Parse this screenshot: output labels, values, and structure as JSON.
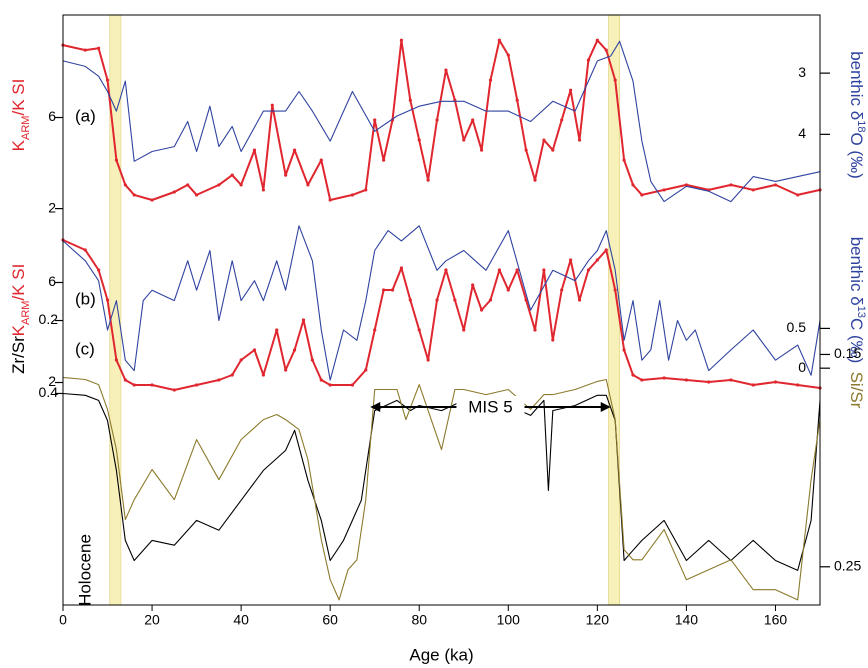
{
  "chart_data": [
    {
      "type": "line",
      "label": "(a)",
      "ylabel": [
        "K",
        "ARM",
        "/K SI"
      ],
      "y2label": [
        "benthic δ",
        "18",
        "O (‰)"
      ],
      "ylim": [
        1.5,
        10.5
      ],
      "yticks": [
        2,
        6
      ],
      "y2lim": [
        5.4,
        2.05
      ],
      "y2ticks": [
        3,
        4
      ],
      "label_colors": [
        "#e0262e",
        "#2f43a0"
      ],
      "series": [
        {
          "color": "#e0262e",
          "axis": "y",
          "x": [
            0,
            5,
            8,
            10,
            12,
            14,
            16,
            20,
            25,
            28,
            30,
            35,
            38,
            40,
            43,
            45,
            47,
            50,
            52,
            55,
            58,
            60,
            65,
            68,
            70,
            72,
            74,
            76,
            78,
            80,
            82,
            84,
            86,
            88,
            90,
            92,
            94,
            96,
            98,
            100,
            102,
            104,
            106,
            108,
            110,
            112,
            114,
            116,
            118,
            120,
            122,
            124,
            126,
            128,
            130,
            135,
            140,
            145,
            150,
            155,
            160,
            165,
            170
          ],
          "values": [
            9.18,
            8.96,
            9.04,
            7.64,
            4.13,
            3.04,
            2.6,
            2.38,
            2.73,
            3.04,
            2.6,
            3.04,
            3.47,
            3.04,
            4.57,
            2.82,
            6.54,
            3.47,
            4.57,
            3.04,
            4.13,
            2.38,
            2.6,
            2.82,
            5.89,
            4.13,
            5.89,
            9.39,
            6.76,
            5.01,
            3.25,
            5.89,
            8.08,
            6.76,
            5.01,
            5.89,
            4.57,
            7.64,
            9.39,
            8.74,
            6.76,
            4.57,
            3.25,
            5.01,
            4.57,
            5.89,
            7.2,
            5.01,
            8.52,
            9.39,
            8.96,
            7.64,
            4.13,
            3.04,
            2.6,
            2.82,
            3.04,
            2.82,
            3.04,
            2.82,
            3.04,
            2.6,
            2.82
          ]
        },
        {
          "color": "#2f43a0",
          "axis": "y2",
          "x": [
            0,
            5,
            8,
            10,
            12,
            14,
            16,
            20,
            25,
            28,
            30,
            33,
            35,
            38,
            40,
            45,
            50,
            53,
            56,
            60,
            65,
            70,
            75,
            80,
            85,
            90,
            95,
            100,
            105,
            110,
            115,
            120,
            123,
            125,
            128,
            130,
            132,
            135,
            140,
            145,
            150,
            155,
            160,
            165,
            170
          ],
          "values": [
            2.8,
            2.89,
            3.05,
            3.3,
            3.62,
            3.13,
            4.44,
            4.28,
            4.2,
            3.79,
            4.28,
            3.54,
            4.2,
            3.87,
            4.28,
            3.62,
            3.62,
            3.3,
            3.62,
            4.11,
            3.3,
            3.95,
            3.7,
            3.54,
            3.46,
            3.46,
            3.62,
            3.62,
            3.79,
            3.46,
            3.62,
            2.8,
            2.72,
            2.48,
            3.13,
            4.11,
            4.77,
            5.1,
            4.85,
            4.93,
            5.1,
            4.69,
            4.77,
            4.69,
            4.61
          ]
        }
      ]
    },
    {
      "type": "line",
      "label": "(b)",
      "ylabel": [
        "K",
        "ARM",
        "/K SI"
      ],
      "y2label": [
        "benthic δ",
        "13",
        "C (‰)"
      ],
      "ylim": [
        1.3,
        8.3
      ],
      "yticks": [
        2,
        6
      ],
      "y2lim": [
        -0.4,
        1.8
      ],
      "y2ticks": [
        0.5,
        0
      ],
      "label_colors": [
        "#e0262e",
        "#2f43a0"
      ],
      "series": [
        {
          "color": "#e0262e",
          "axis": "y",
          "x": [
            0,
            5,
            8,
            10,
            12,
            14,
            16,
            20,
            25,
            30,
            35,
            38,
            40,
            43,
            45,
            48,
            50,
            52,
            54,
            56,
            58,
            60,
            65,
            68,
            70,
            72,
            74,
            76,
            78,
            80,
            82,
            84,
            86,
            88,
            90,
            92,
            94,
            96,
            98,
            100,
            102,
            104,
            106,
            108,
            110,
            112,
            114,
            116,
            118,
            120,
            122,
            124,
            126,
            128,
            130,
            135,
            140,
            145,
            150,
            155,
            160,
            165,
            170
          ],
          "values": [
            7.7,
            7.3,
            6.5,
            5.3,
            2.9,
            2.1,
            1.9,
            1.9,
            1.7,
            1.9,
            2.1,
            2.3,
            2.9,
            3.3,
            2.3,
            4.1,
            2.5,
            3.3,
            4.5,
            2.9,
            2.1,
            1.9,
            1.9,
            2.5,
            4.1,
            5.7,
            5.7,
            6.58,
            5.3,
            4.1,
            2.9,
            5.3,
            6.5,
            5.3,
            4.1,
            5.9,
            4.9,
            5.3,
            6.5,
            5.7,
            6.5,
            5.3,
            4.1,
            6.5,
            3.7,
            5.7,
            6.9,
            5.3,
            6.5,
            6.9,
            7.3,
            5.7,
            3.3,
            2.3,
            2.1,
            2.18,
            2.1,
            2.02,
            2.1,
            1.9,
            2.02,
            1.9,
            1.78
          ]
        },
        {
          "color": "#2f43a0",
          "axis": "y2",
          "x": [
            0,
            5,
            8,
            10,
            12,
            14,
            16,
            18,
            20,
            25,
            28,
            30,
            33,
            35,
            38,
            40,
            43,
            45,
            48,
            50,
            53,
            56,
            58,
            60,
            63,
            66,
            68,
            70,
            73,
            76,
            80,
            84,
            86,
            90,
            95,
            100,
            105,
            110,
            115,
            118,
            120,
            122,
            124,
            126,
            128,
            130,
            132,
            134,
            136,
            138,
            140,
            142,
            145,
            150,
            155,
            160,
            165,
            168,
            170
          ],
          "values": [
            1.6,
            1.35,
            1.1,
            0.48,
            0.85,
            0.1,
            -0.03,
            0.85,
            0.98,
            0.85,
            1.35,
            0.98,
            1.48,
            0.6,
            1.35,
            0.85,
            1.1,
            0.85,
            1.35,
            0.98,
            1.79,
            1.35,
            0.48,
            -0.15,
            0.48,
            0.35,
            0.85,
            1.48,
            1.73,
            1.6,
            1.79,
            1.23,
            1.35,
            1.48,
            1.23,
            1.73,
            0.73,
            1.23,
            1.1,
            1.35,
            1.48,
            1.73,
            1.23,
            0.35,
            0.85,
            0.1,
            0.23,
            0.85,
            0.1,
            0.6,
            0.35,
            0.48,
            -0.03,
            0.23,
            0.48,
            0.1,
            0.29,
            -0.09,
            0.6
          ]
        }
      ]
    },
    {
      "type": "line",
      "label": "(c)",
      "ylabel": [
        "Zr/Sr"
      ],
      "y2label": [
        "Si/Sr"
      ],
      "ylim": [
        0.98,
        0.13
      ],
      "yticks": [
        0.2,
        0.4
      ],
      "y2lim": [
        0.268,
        0.122
      ],
      "y2ticks": [
        0.15,
        0.25
      ],
      "label_colors": [
        "#000000",
        "#8c7a2c"
      ],
      "xlim": [
        0,
        170
      ],
      "xticks": [
        0,
        20,
        40,
        60,
        80,
        100,
        120,
        140,
        160
      ],
      "xlabel": "Age (ka)",
      "bands": [
        [
          10.5,
          13
        ],
        [
          122.5,
          125
        ]
      ],
      "band_color": "#f7f0b9",
      "annotations": [
        {
          "text": "Holocene"
        },
        {
          "text": "MIS 5",
          "x": [
            69,
            123
          ]
        }
      ],
      "series": [
        {
          "color": "#000000",
          "axis": "y",
          "x": [
            0,
            5,
            8,
            10,
            12,
            14,
            16,
            20,
            25,
            30,
            35,
            40,
            45,
            50,
            52,
            55,
            58,
            60,
            63,
            65,
            67,
            70,
            75,
            78,
            80,
            85,
            90,
            95,
            100,
            105,
            108,
            109,
            110,
            115,
            120,
            122,
            124,
            126,
            128,
            130,
            135,
            140,
            145,
            150,
            155,
            160,
            165,
            168,
            170
          ],
          "values": [
            0.4,
            0.405,
            0.419,
            0.474,
            0.611,
            0.803,
            0.858,
            0.803,
            0.816,
            0.748,
            0.775,
            0.693,
            0.611,
            0.556,
            0.501,
            0.638,
            0.748,
            0.858,
            0.803,
            0.748,
            0.693,
            0.447,
            0.419,
            0.447,
            0.433,
            0.447,
            0.419,
            0.447,
            0.433,
            0.46,
            0.419,
            0.666,
            0.447,
            0.433,
            0.405,
            0.405,
            0.474,
            0.858,
            0.83,
            0.803,
            0.748,
            0.858,
            0.803,
            0.858,
            0.803,
            0.858,
            0.885,
            0.748,
            0.419
          ]
        },
        {
          "color": "#8c7a2c",
          "axis": "y2",
          "x": [
            0,
            5,
            8,
            10,
            12,
            14,
            16,
            20,
            25,
            30,
            35,
            40,
            45,
            48,
            50,
            53,
            55,
            58,
            60,
            62,
            64,
            66,
            68,
            70,
            72,
            75,
            77,
            80,
            85,
            88,
            90,
            95,
            100,
            105,
            108,
            110,
            115,
            120,
            122,
            124,
            126,
            128,
            130,
            135,
            140,
            145,
            150,
            155,
            160,
            165,
            168,
            170
          ],
          "values": [
            0.1608,
            0.1618,
            0.1642,
            0.1759,
            0.1948,
            0.2278,
            0.2184,
            0.2042,
            0.2184,
            0.1901,
            0.209,
            0.1901,
            0.1807,
            0.1783,
            0.1807,
            0.1854,
            0.1995,
            0.2373,
            0.2561,
            0.2656,
            0.2514,
            0.2467,
            0.2184,
            0.1665,
            0.1665,
            0.1665,
            0.1807,
            0.1642,
            0.1948,
            0.1665,
            0.1665,
            0.1689,
            0.1665,
            0.1759,
            0.1689,
            0.1689,
            0.1665,
            0.1627,
            0.1618,
            0.1807,
            0.242,
            0.2467,
            0.2467,
            0.2325,
            0.2561,
            0.2514,
            0.2467,
            0.2608,
            0.2608,
            0.2656,
            0.209,
            0.1807
          ]
        }
      ]
    }
  ]
}
